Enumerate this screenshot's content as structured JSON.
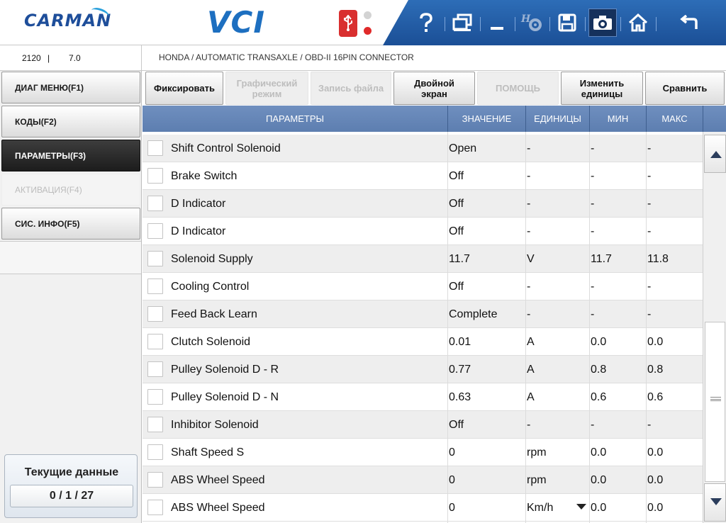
{
  "header": {
    "brand": "CARMAN",
    "product": "VCI",
    "toolbar": {
      "help_icon": "question-mark",
      "window_icon": "windows",
      "minimize_icon": "minimize",
      "settings_icon": "gear-disabled",
      "save_icon": "floppy-disk",
      "screenshot_icon": "camera",
      "home_icon": "home",
      "back_icon": "return-arrow"
    },
    "status": {
      "usb_color": "#d92f2f",
      "led_top": "#d3d3d3",
      "led_bottom": "#e02a2a"
    }
  },
  "info": {
    "value1": "2120",
    "separator": "|",
    "value2": "7.0",
    "breadcrumb": "HONDA / AUTOMATIC TRANSAXLE / OBD-II 16PIN CONNECTOR"
  },
  "sidebar": {
    "items": [
      {
        "label": "ДИАГ МЕНЮ(F1)",
        "state": "normal"
      },
      {
        "label": "КОДЫ(F2)",
        "state": "normal"
      },
      {
        "label": "ПАРАМЕТРЫ(F3)",
        "state": "active"
      },
      {
        "label": "АКТИВАЦИЯ(F4)",
        "state": "disabled"
      },
      {
        "label": "СИС. ИНФО(F5)",
        "state": "normal"
      }
    ],
    "current_data": {
      "title": "Текущие данные",
      "count": "0 / 1 / 27"
    }
  },
  "functions": {
    "fix": "Фиксировать",
    "graph_line1": "Графический",
    "graph_line2": "режим",
    "record": "Запись файла",
    "dual_line1": "Двойной",
    "dual_line2": "экран",
    "help": "ПОМОЩЬ",
    "units_line1": "Изменить",
    "units_line2": "единицы",
    "compare": "Сравнить"
  },
  "table": {
    "headers": {
      "param": "ПАРАМЕТРЫ",
      "value": "ЗНАЧЕНИЕ",
      "units": "ЕДИНИЦЫ",
      "min": "МИН",
      "max": "МАКС"
    },
    "rows": [
      {
        "name": "Shift Control Solenoid",
        "value": "Open",
        "unit": "-",
        "min": "-",
        "max": "-"
      },
      {
        "name": "Brake Switch",
        "value": "Off",
        "unit": "-",
        "min": "-",
        "max": "-"
      },
      {
        "name": "D Indicator",
        "value": "Off",
        "unit": "-",
        "min": "-",
        "max": "-"
      },
      {
        "name": "D Indicator",
        "value": "Off",
        "unit": "-",
        "min": "-",
        "max": "-"
      },
      {
        "name": "Solenoid Supply",
        "value": "11.7",
        "unit": "V",
        "min": "11.7",
        "max": "11.8"
      },
      {
        "name": "Cooling Control",
        "value": "Off",
        "unit": "-",
        "min": "-",
        "max": "-"
      },
      {
        "name": "Feed Back Learn",
        "value": "Complete",
        "unit": "-",
        "min": "-",
        "max": "-"
      },
      {
        "name": "Clutch Solenoid",
        "value": "0.01",
        "unit": "A",
        "min": "0.0",
        "max": "0.0"
      },
      {
        "name": "Pulley Solenoid D - R",
        "value": "0.77",
        "unit": "A",
        "min": "0.8",
        "max": "0.8"
      },
      {
        "name": "Pulley Solenoid D - N",
        "value": "0.63",
        "unit": "A",
        "min": "0.6",
        "max": "0.6"
      },
      {
        "name": "Inhibitor Solenoid",
        "value": "Off",
        "unit": "-",
        "min": "-",
        "max": "-"
      },
      {
        "name": "Shaft Speed S",
        "value": "0",
        "unit": "rpm",
        "min": "0.0",
        "max": "0.0"
      },
      {
        "name": "ABS Wheel Speed",
        "value": "0",
        "unit": "rpm",
        "min": "0.0",
        "max": "0.0"
      },
      {
        "name": "ABS Wheel Speed",
        "value": "0",
        "unit": "Km/h",
        "min": "0.0",
        "max": "0.0",
        "unit_dropdown": true
      }
    ]
  }
}
